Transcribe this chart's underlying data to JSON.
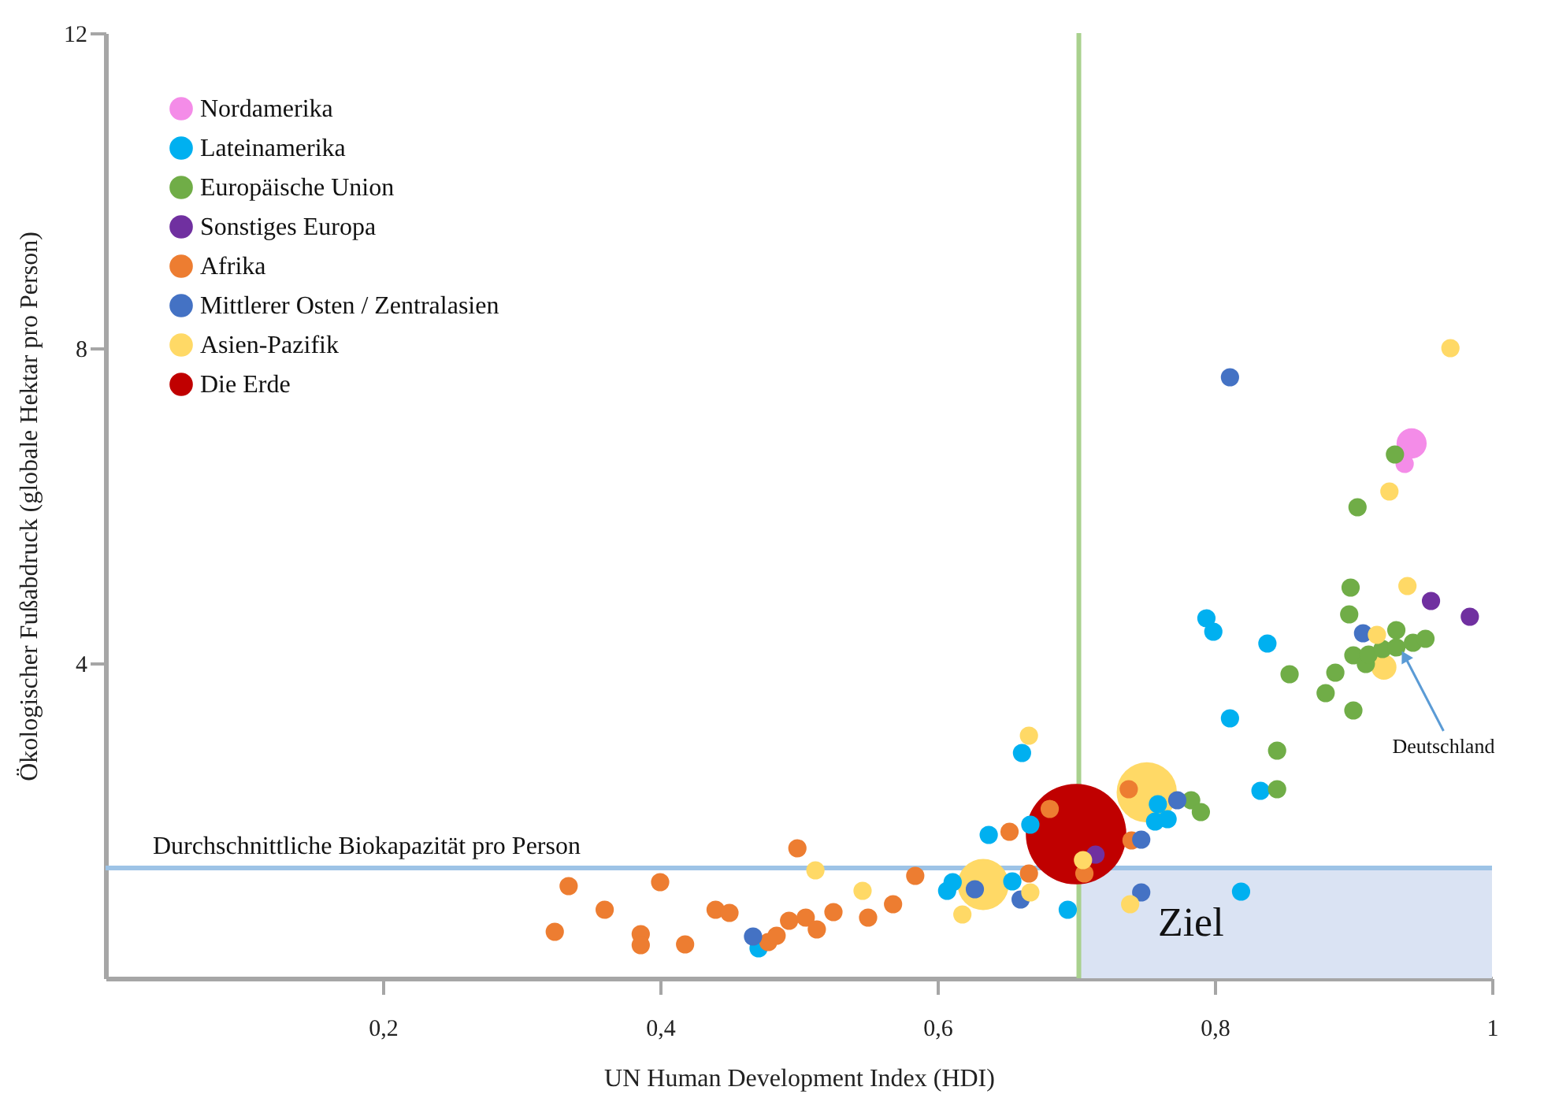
{
  "chart_data": {
    "type": "bubble",
    "xlabel": "UN Human Development Index (HDI)",
    "ylabel": "Ökologischer Fußabdruck (globale Hektar pro Person)",
    "xlim": [
      0,
      1
    ],
    "ylim": [
      0,
      12
    ],
    "xticks": [
      {
        "value": 0.2,
        "label": "0,2"
      },
      {
        "value": 0.4,
        "label": "0,4"
      },
      {
        "value": 0.6,
        "label": "0,6"
      },
      {
        "value": 0.8,
        "label": "0,8"
      },
      1
    ],
    "yticks": [
      4,
      8,
      12
    ],
    "grid": false,
    "legend": "top left",
    "marker": "circle",
    "series": [
      {
        "name": "Nordamerika",
        "color": "#f48ce8",
        "x": [
          0.942,
          0.937
        ],
        "values": [
          6.79,
          6.53
        ],
        "sizes": [
          0.09,
          0.033
        ]
      },
      {
        "name": "Lateinamerika",
        "color": "#00b0f0",
        "x": [
          0.471,
          0.607,
          0.611,
          0.637,
          0.654,
          0.661,
          0.667,
          0.694,
          0.757,
          0.759,
          0.766,
          0.794,
          0.799,
          0.811,
          0.819,
          0.833,
          0.838
        ],
        "values": [
          0.38,
          1.11,
          1.22,
          1.82,
          1.23,
          2.86,
          1.95,
          0.87,
          1.99,
          2.21,
          2.02,
          4.57,
          4.4,
          3.3,
          1.1,
          2.38,
          4.25
        ],
        "sizes": [
          0.033,
          0.033,
          0.033,
          0.033,
          0.033,
          0.033,
          0.033,
          0.033,
          0.033,
          0.033,
          0.033,
          0.033,
          0.033,
          0.033,
          0.033,
          0.033,
          0.033
        ]
      },
      {
        "name": "Europäische Union",
        "color": "#70ad47",
        "x": [
          0.783,
          0.79,
          0.845,
          0.845,
          0.854,
          0.88,
          0.887,
          0.897,
          0.898,
          0.9,
          0.9,
          0.903,
          0.909,
          0.911,
          0.921,
          0.93,
          0.931,
          0.931,
          0.943,
          0.952
        ],
        "values": [
          2.26,
          2.11,
          2.4,
          2.89,
          3.86,
          3.62,
          3.88,
          4.62,
          4.96,
          4.1,
          3.4,
          5.98,
          3.99,
          4.11,
          4.18,
          6.65,
          4.42,
          4.2,
          4.26,
          4.31
        ],
        "sizes": [
          0.033,
          0.033,
          0.033,
          0.033,
          0.033,
          0.033,
          0.033,
          0.033,
          0.033,
          0.033,
          0.033,
          0.033,
          0.033,
          0.033,
          0.033,
          0.033,
          0.033,
          0.033,
          0.033,
          0.033
        ]
      },
      {
        "name": "Sonstiges Europa",
        "color": "#7030a0",
        "x": [
          0.714,
          0.956,
          0.984
        ],
        "values": [
          1.57,
          4.79,
          4.59
        ],
        "sizes": [
          0.033,
          0.033,
          0.033
        ]
      },
      {
        "name": "Afrika",
        "color": "#ed7d31",
        "x": [
          0.324,
          0.334,
          0.36,
          0.386,
          0.386,
          0.4,
          0.418,
          0.44,
          0.45,
          0.478,
          0.484,
          0.493,
          0.499,
          0.505,
          0.513,
          0.525,
          0.55,
          0.568,
          0.584,
          0.652,
          0.666,
          0.681,
          0.706,
          0.738,
          0.74
        ],
        "values": [
          0.59,
          1.17,
          0.87,
          0.56,
          0.42,
          1.22,
          0.43,
          0.87,
          0.83,
          0.46,
          0.54,
          0.73,
          1.65,
          0.77,
          0.62,
          0.84,
          0.77,
          0.94,
          1.3,
          1.86,
          1.33,
          2.15,
          1.33,
          2.4,
          1.75
        ],
        "sizes": [
          0.033,
          0.033,
          0.033,
          0.033,
          0.033,
          0.033,
          0.033,
          0.033,
          0.033,
          0.033,
          0.033,
          0.033,
          0.033,
          0.033,
          0.033,
          0.033,
          0.033,
          0.033,
          0.033,
          0.033,
          0.033,
          0.033,
          0.033,
          0.033,
          0.033
        ]
      },
      {
        "name": "Mittlerer Osten / Zentralasien",
        "color": "#4472c4",
        "x": [
          0.467,
          0.627,
          0.66,
          0.747,
          0.747,
          0.773,
          0.811,
          0.907
        ],
        "values": [
          0.53,
          1.13,
          1.0,
          1.76,
          1.09,
          2.26,
          7.63,
          4.38
        ],
        "sizes": [
          0.033,
          0.033,
          0.033,
          0.033,
          0.033,
          0.033,
          0.033,
          0.033
        ]
      },
      {
        "name": "Asien-Pazifik",
        "color": "#ffd966",
        "x": [
          0.512,
          0.546,
          0.618,
          0.633,
          0.666,
          0.667,
          0.705,
          0.739,
          0.751,
          0.917,
          0.922,
          0.926,
          0.939,
          0.97
        ],
        "values": [
          1.37,
          1.11,
          0.81,
          1.19,
          3.08,
          1.09,
          1.5,
          0.94,
          2.36,
          4.36,
          3.95,
          6.18,
          4.98,
          8.0
        ],
        "sizes": [
          0.033,
          0.033,
          0.033,
          0.26,
          0.033,
          0.033,
          0.033,
          0.033,
          0.36,
          0.033,
          0.063,
          0.033,
          0.033,
          0.033
        ]
      },
      {
        "name": "Die Erde",
        "color": "#c00000",
        "x": [
          0.7
        ],
        "values": [
          1.83
        ],
        "sizes": [
          1
        ]
      }
    ],
    "ref_lines": [
      {
        "axis": "y",
        "value": 1.4,
        "label": "Durchschnittliche Biokapazität pro Person",
        "color": "#9dc3e6"
      },
      {
        "axis": "x",
        "value": 0.702,
        "color": "#a9d18e"
      }
    ],
    "bands": [
      {
        "axis": "x",
        "from": 0.702,
        "to": 1,
        "label": "Ziel",
        "color": "#dae3f3"
      }
    ],
    "annotations": [
      {
        "text": "Deutschland",
        "x": 0.937,
        "y": 4.09
      }
    ]
  }
}
